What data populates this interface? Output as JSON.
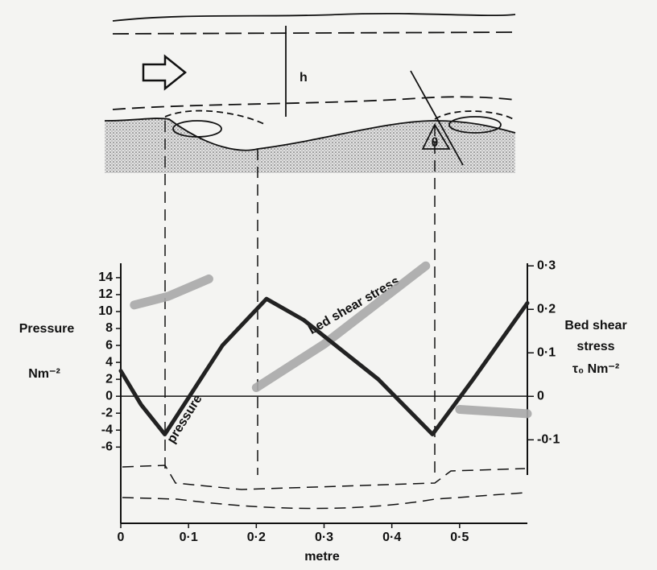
{
  "chart_data": {
    "type": "line",
    "xlabel": "metre",
    "ylabel": "Pressure",
    "yunit": "Nm⁻²",
    "y2label": "Bed shear stress",
    "y2unit": "τ₀ Nm⁻²",
    "diagram_labels": [
      "h",
      "θ"
    ],
    "xlim": [
      0,
      0.6
    ],
    "ylim": [
      -15,
      15.7
    ],
    "y2lim": [
      -0.292,
      0.306
    ],
    "xticks": [
      0,
      {
        "value": 0.1,
        "label": "0·1"
      },
      {
        "value": 0.2,
        "label": "0·2"
      },
      {
        "value": 0.3,
        "label": "0·3"
      },
      {
        "value": 0.4,
        "label": "0·4"
      },
      {
        "value": 0.5,
        "label": "0·5"
      }
    ],
    "yticks": [
      -6,
      -4,
      -2,
      0,
      2,
      4,
      6,
      8,
      10,
      12,
      14
    ],
    "y2ticks": [
      {
        "value": -0.1,
        "label": "-0·1"
      },
      0,
      {
        "value": 0.1,
        "label": "0·1"
      },
      {
        "value": 0.2,
        "label": "0·2"
      },
      {
        "value": 0.3,
        "label": "0·3"
      }
    ],
    "series": [
      {
        "name": "pressure",
        "color": "#222222",
        "x": [
          0,
          0.03,
          0.065,
          0.15,
          0.215,
          0.27,
          0.38,
          0.46,
          0.52,
          0.6
        ],
        "values": [
          3,
          -1,
          -4.5,
          6,
          11.5,
          9,
          2,
          -4.5,
          2,
          11
        ]
      },
      {
        "name": "bed shear stress",
        "color": "#a8a8a8",
        "axis": "y2",
        "x": [
          0.02,
          0.07,
          0.13,
          0.17,
          0.2,
          0.3,
          0.45,
          0.47,
          0.5,
          0.6
        ],
        "values": [
          0.21,
          0.23,
          0.27,
          null,
          0.02,
          0.12,
          0.3,
          null,
          -0.03,
          -0.04
        ]
      }
    ]
  }
}
